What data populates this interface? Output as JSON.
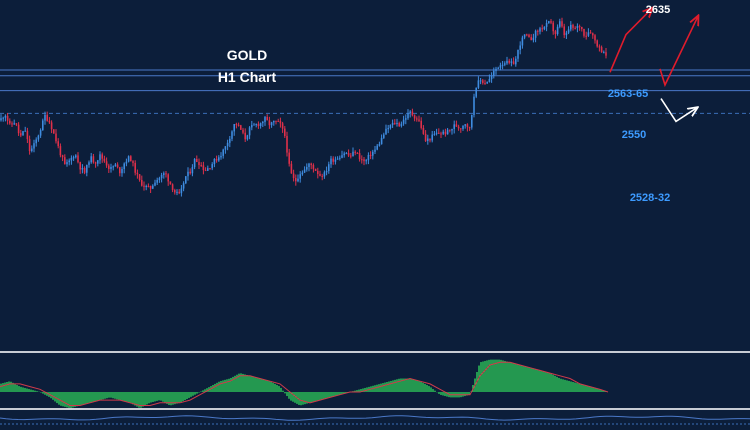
{
  "chart_data": {
    "type": "candlestick",
    "title": "GOLD",
    "subtitle": "H1 Chart",
    "colors": {
      "background": "#0c1e3a",
      "bull_candle": "#3f8ce0",
      "bear_candle": "#e0304a",
      "level_line": "#4a78c8",
      "support_dash": "#3a6eb8",
      "forecast_red": "#e01c2c",
      "forecast_white": "#ffffff",
      "histogram": "#2ecc5a",
      "signal": "#d13a4a",
      "level_text": "#3d9bff",
      "text": "#ffffff"
    },
    "levels": [
      {
        "name": "resistance",
        "value": 2635,
        "label": "2635",
        "style": "none",
        "label_color": "white"
      },
      {
        "name": "upper-zone-top",
        "value": 2568,
        "label": "",
        "style": "solid"
      },
      {
        "name": "upper-zone",
        "value": 2563,
        "label": "2563-65",
        "style": "solid",
        "label_color": "blue"
      },
      {
        "name": "mid-support",
        "value": 2550,
        "label": "2550",
        "style": "solid",
        "label_color": "blue"
      },
      {
        "name": "lower-support",
        "value": 2530,
        "label": "2528-32",
        "style": "dashed",
        "label_color": "blue"
      }
    ],
    "price_path": [
      [
        0,
        2524
      ],
      [
        5,
        2530
      ],
      [
        10,
        2519
      ],
      [
        15,
        2523
      ],
      [
        20,
        2509
      ],
      [
        25,
        2516
      ],
      [
        30,
        2496
      ],
      [
        35,
        2504
      ],
      [
        40,
        2515
      ],
      [
        45,
        2528
      ],
      [
        50,
        2522
      ],
      [
        55,
        2509
      ],
      [
        60,
        2496
      ],
      [
        65,
        2484
      ],
      [
        70,
        2489
      ],
      [
        75,
        2495
      ],
      [
        80,
        2483
      ],
      [
        85,
        2478
      ],
      [
        90,
        2492
      ],
      [
        95,
        2487
      ],
      [
        100,
        2493
      ],
      [
        105,
        2488
      ],
      [
        110,
        2481
      ],
      [
        115,
        2485
      ],
      [
        120,
        2479
      ],
      [
        125,
        2488
      ],
      [
        130,
        2492
      ],
      [
        135,
        2480
      ],
      [
        140,
        2470
      ],
      [
        145,
        2466
      ],
      [
        150,
        2464
      ],
      [
        155,
        2471
      ],
      [
        160,
        2474
      ],
      [
        165,
        2478
      ],
      [
        170,
        2469
      ],
      [
        175,
        2461
      ],
      [
        180,
        2458
      ],
      [
        185,
        2474
      ],
      [
        190,
        2479
      ],
      [
        195,
        2490
      ],
      [
        200,
        2486
      ],
      [
        205,
        2480
      ],
      [
        210,
        2484
      ],
      [
        215,
        2489
      ],
      [
        220,
        2493
      ],
      [
        225,
        2500
      ],
      [
        230,
        2510
      ],
      [
        235,
        2522
      ],
      [
        240,
        2517
      ],
      [
        245,
        2508
      ],
      [
        250,
        2517
      ],
      [
        255,
        2520
      ],
      [
        260,
        2521
      ],
      [
        265,
        2525
      ],
      [
        270,
        2520
      ],
      [
        275,
        2523
      ],
      [
        280,
        2521
      ],
      [
        285,
        2510
      ],
      [
        290,
        2479
      ],
      [
        295,
        2470
      ],
      [
        300,
        2478
      ],
      [
        305,
        2481
      ],
      [
        310,
        2486
      ],
      [
        315,
        2481
      ],
      [
        320,
        2476
      ],
      [
        325,
        2477
      ],
      [
        330,
        2489
      ],
      [
        335,
        2490
      ],
      [
        340,
        2493
      ],
      [
        345,
        2496
      ],
      [
        350,
        2492
      ],
      [
        355,
        2497
      ],
      [
        360,
        2491
      ],
      [
        365,
        2487
      ],
      [
        370,
        2494
      ],
      [
        375,
        2498
      ],
      [
        380,
        2505
      ],
      [
        385,
        2514
      ],
      [
        390,
        2519
      ],
      [
        395,
        2522
      ],
      [
        400,
        2520
      ],
      [
        405,
        2526
      ],
      [
        410,
        2531
      ],
      [
        415,
        2527
      ],
      [
        420,
        2522
      ],
      [
        425,
        2506
      ],
      [
        430,
        2508
      ],
      [
        435,
        2512
      ],
      [
        440,
        2513
      ],
      [
        445,
        2513
      ],
      [
        450,
        2515
      ],
      [
        455,
        2520
      ],
      [
        460,
        2517
      ],
      [
        465,
        2522
      ],
      [
        470,
        2516
      ],
      [
        475,
        2553
      ],
      [
        480,
        2559
      ],
      [
        485,
        2557
      ],
      [
        490,
        2560
      ],
      [
        495,
        2568
      ],
      [
        500,
        2573
      ],
      [
        505,
        2575
      ],
      [
        510,
        2573
      ],
      [
        515,
        2575
      ],
      [
        520,
        2591
      ],
      [
        525,
        2599
      ],
      [
        530,
        2594
      ],
      [
        535,
        2600
      ],
      [
        540,
        2604
      ],
      [
        545,
        2606
      ],
      [
        550,
        2610
      ],
      [
        555,
        2599
      ],
      [
        560,
        2610
      ],
      [
        565,
        2597
      ],
      [
        570,
        2606
      ],
      [
        575,
        2604
      ],
      [
        580,
        2607
      ],
      [
        585,
        2598
      ],
      [
        590,
        2603
      ],
      [
        595,
        2594
      ],
      [
        600,
        2586
      ],
      [
        605,
        2584
      ],
      [
        608,
        2569
      ]
    ],
    "forecast_paths": [
      {
        "name": "red-arrow-1",
        "color": "red",
        "points": [
          [
            610,
            2566
          ],
          [
            626,
            2599
          ],
          [
            652,
            2622
          ]
        ]
      },
      {
        "name": "red-arrow-2",
        "color": "red",
        "points": [
          [
            660,
            2569
          ],
          [
            665,
            2555
          ],
          [
            698,
            2615
          ]
        ]
      },
      {
        "name": "white-arrow",
        "color": "white",
        "points": [
          [
            661,
            2543
          ],
          [
            676,
            2523
          ],
          [
            697,
            2535
          ]
        ]
      }
    ],
    "oscillator": {
      "histogram_x": [
        0,
        10,
        20,
        30,
        40,
        50,
        60,
        70,
        80,
        90,
        100,
        110,
        120,
        130,
        140,
        150,
        160,
        170,
        180,
        190,
        200,
        210,
        220,
        230,
        240,
        250,
        260,
        270,
        280,
        290,
        300,
        310,
        320,
        330,
        340,
        350,
        360,
        370,
        380,
        390,
        400,
        410,
        420,
        430,
        440,
        450,
        460,
        470,
        480,
        490,
        500,
        510,
        520,
        530,
        540,
        550,
        560,
        570,
        580,
        590,
        600,
        608
      ],
      "histogram_values": [
        3,
        4,
        2,
        1,
        0,
        -2,
        -5,
        -6,
        -5,
        -4,
        -3,
        -2,
        -3,
        -4,
        -6,
        -4,
        -3,
        -5,
        -4,
        -2,
        0,
        2,
        4,
        5,
        7,
        6,
        5,
        4,
        2,
        -3,
        -5,
        -4,
        -3,
        -2,
        -1,
        0,
        1,
        2,
        3,
        4,
        5,
        5,
        4,
        2,
        -1,
        -2,
        -2,
        -1,
        11,
        12,
        12,
        11,
        10,
        9,
        8,
        7,
        5,
        4,
        3,
        2,
        1,
        0
      ],
      "signal_values": [
        2,
        3,
        3,
        2,
        1,
        -1,
        -3,
        -5,
        -5,
        -4,
        -3,
        -3,
        -3,
        -4,
        -5,
        -5,
        -4,
        -4,
        -4,
        -3,
        -1,
        1,
        3,
        4,
        6,
        6,
        5,
        4,
        3,
        0,
        -3,
        -4,
        -3,
        -2,
        -1,
        0,
        0,
        1,
        2,
        3,
        4,
        5,
        4,
        3,
        1,
        -1,
        -1,
        -1,
        6,
        10,
        11,
        11,
        10,
        9,
        8,
        7,
        6,
        5,
        3,
        2,
        1,
        0
      ]
    }
  }
}
